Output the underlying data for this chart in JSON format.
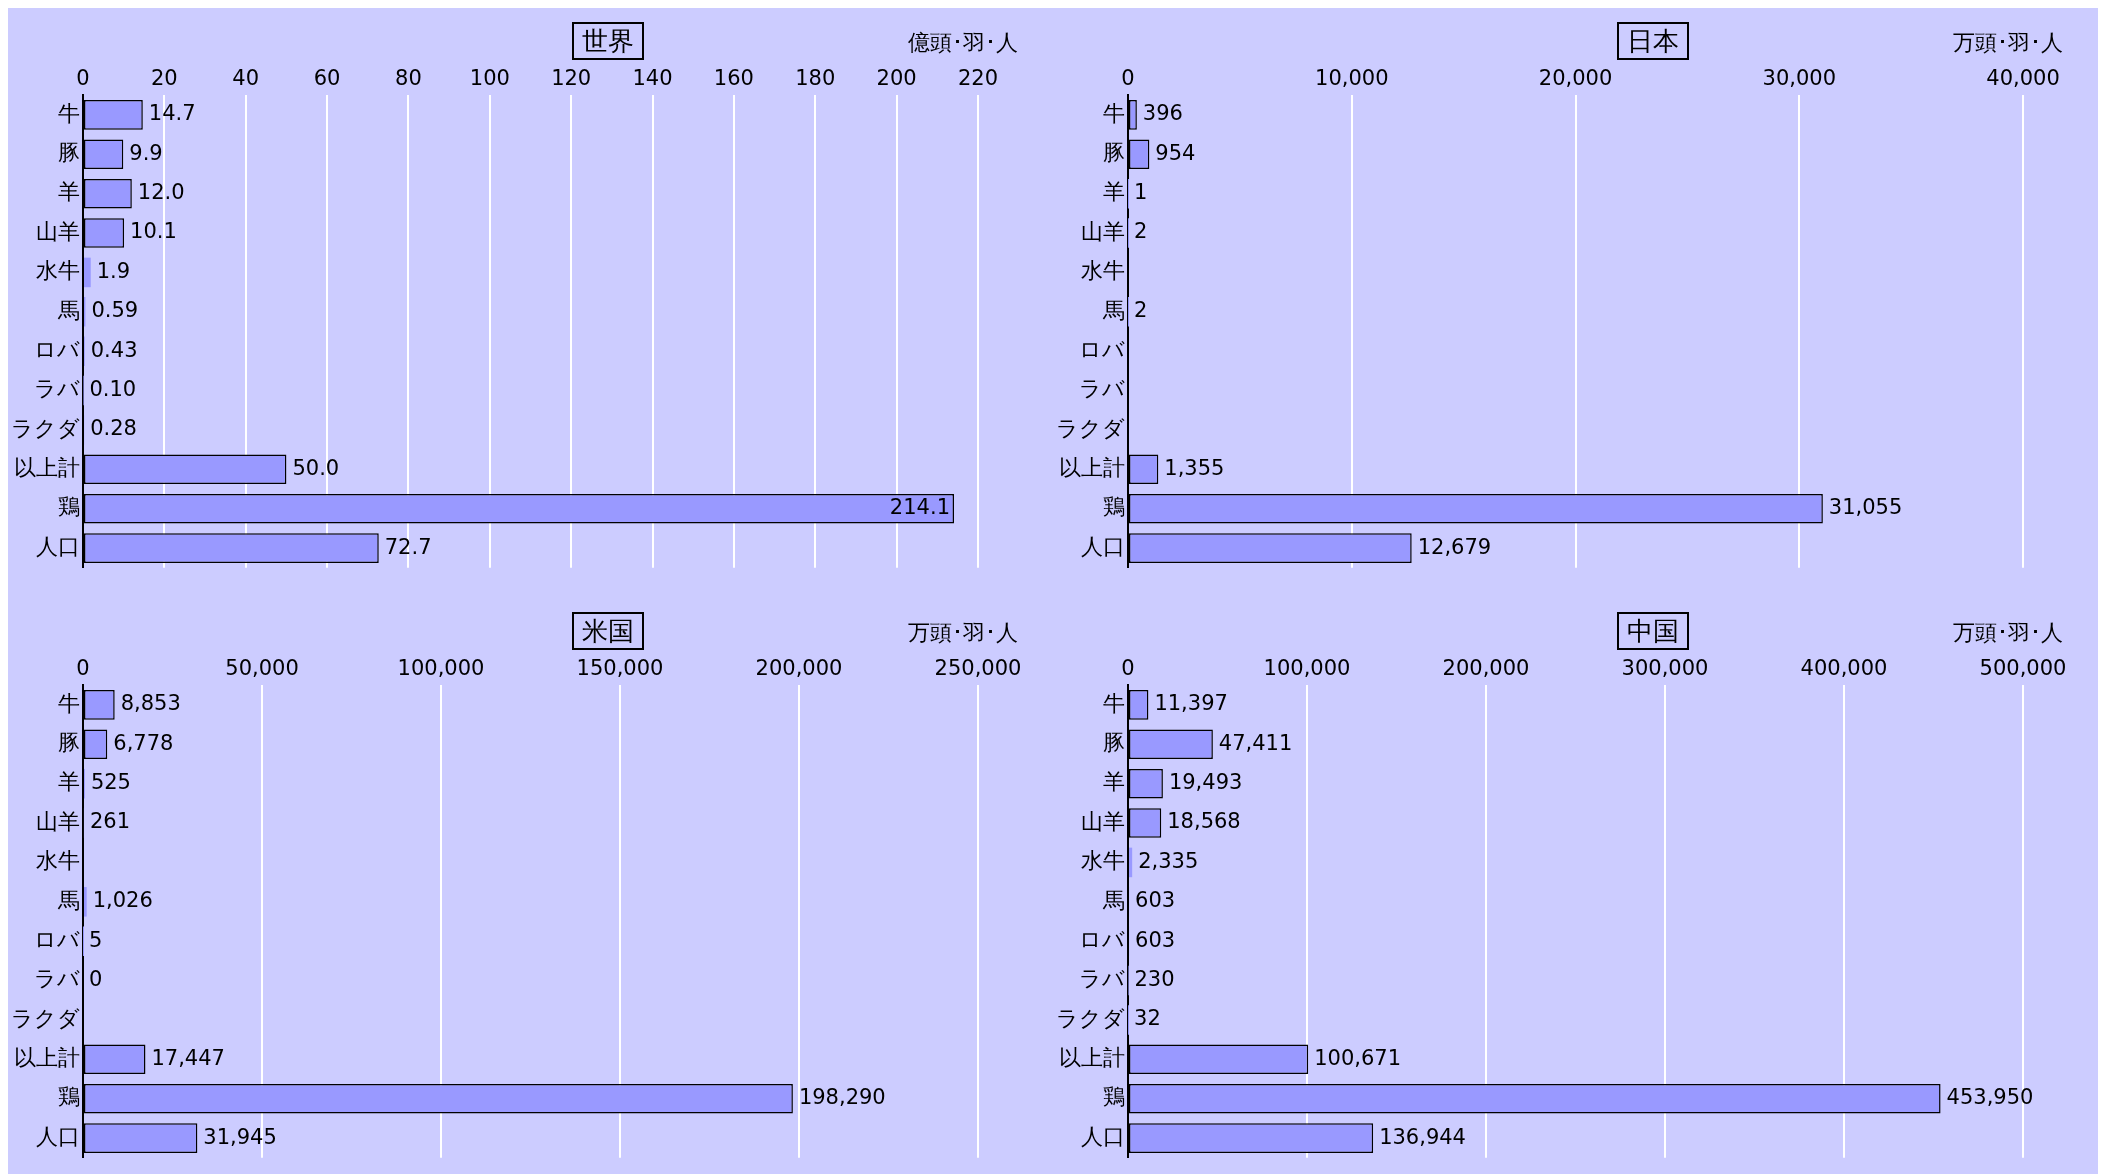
{
  "chart_data": [
    {
      "type": "bar",
      "orientation": "horizontal",
      "title": "世界",
      "xlabel": "億頭･羽･人",
      "categories": [
        "牛",
        "豚",
        "羊",
        "山羊",
        "水牛",
        "馬",
        "ロバ",
        "ラバ",
        "ラクダ",
        "以上計",
        "鶏",
        "人口"
      ],
      "values": [
        14.7,
        9.9,
        12.0,
        10.1,
        1.9,
        0.59,
        0.43,
        0.1,
        0.28,
        50.0,
        214.1,
        72.7
      ],
      "value_labels": [
        "14.7",
        "9.9",
        "12.0",
        "10.1",
        "1.9",
        "0.59",
        "0.43",
        "0.10",
        "0.28",
        "50.0",
        "214.1",
        "72.7"
      ],
      "color": "#9999ff",
      "xlim": [
        0,
        220
      ],
      "xticks": [
        0,
        20,
        40,
        60,
        80,
        100,
        120,
        140,
        160,
        180,
        200,
        220
      ],
      "grid": "x"
    },
    {
      "type": "bar",
      "orientation": "horizontal",
      "title": "日本",
      "xlabel": "万頭･羽･人",
      "categories": [
        "牛",
        "豚",
        "羊",
        "山羊",
        "水牛",
        "馬",
        "ロバ",
        "ラバ",
        "ラクダ",
        "以上計",
        "鶏",
        "人口"
      ],
      "values": [
        396,
        954,
        1,
        2,
        null,
        2,
        null,
        null,
        null,
        1355,
        31055,
        12679
      ],
      "value_labels": [
        "396",
        "954",
        "1",
        "2",
        null,
        "2",
        null,
        null,
        null,
        "1,355",
        "31,055",
        "12,679"
      ],
      "color": "#9999ff",
      "xlim": [
        0,
        40000
      ],
      "xticks": [
        {
          "value": 0,
          "label": "0"
        },
        {
          "value": 10000,
          "label": "10,000"
        },
        {
          "value": 20000,
          "label": "20,000"
        },
        {
          "value": 30000,
          "label": "30,000"
        },
        {
          "value": 40000,
          "label": "40,000"
        }
      ],
      "grid": "x"
    },
    {
      "type": "bar",
      "orientation": "horizontal",
      "title": "米国",
      "xlabel": "万頭･羽･人",
      "categories": [
        "牛",
        "豚",
        "羊",
        "山羊",
        "水牛",
        "馬",
        "ロバ",
        "ラバ",
        "ラクダ",
        "以上計",
        "鶏",
        "人口"
      ],
      "values": [
        8853,
        6778,
        525,
        261,
        null,
        1026,
        5,
        0,
        null,
        17447,
        198290,
        31945
      ],
      "value_labels": [
        "8,853",
        "6,778",
        "525",
        "261",
        null,
        "1,026",
        "5",
        "0",
        null,
        "17,447",
        "198,290",
        "31,945"
      ],
      "color": "#9999ff",
      "xlim": [
        0,
        250000
      ],
      "xticks": [
        {
          "value": 0,
          "label": "0"
        },
        {
          "value": 50000,
          "label": "50,000"
        },
        {
          "value": 100000,
          "label": "100,000"
        },
        {
          "value": 150000,
          "label": "150,000"
        },
        {
          "value": 200000,
          "label": "200,000"
        },
        {
          "value": 250000,
          "label": "250,000"
        }
      ],
      "grid": "x"
    },
    {
      "type": "bar",
      "orientation": "horizontal",
      "title": "中国",
      "xlabel": "万頭･羽･人",
      "categories": [
        "牛",
        "豚",
        "羊",
        "山羊",
        "水牛",
        "馬",
        "ロバ",
        "ラバ",
        "ラクダ",
        "以上計",
        "鶏",
        "人口"
      ],
      "values": [
        11397,
        47411,
        19493,
        18568,
        2335,
        603,
        603,
        230,
        32,
        100671,
        453950,
        136944
      ],
      "value_labels": [
        "11,397",
        "47,411",
        "19,493",
        "18,568",
        "2,335",
        "603",
        "603",
        "230",
        "32",
        "100,671",
        "453,950",
        "136,944"
      ],
      "color": "#9999ff",
      "xlim": [
        0,
        500000
      ],
      "xticks": [
        {
          "value": 0,
          "label": "0"
        },
        {
          "value": 100000,
          "label": "100,000"
        },
        {
          "value": 200000,
          "label": "200,000"
        },
        {
          "value": 300000,
          "label": "300,000"
        },
        {
          "value": 400000,
          "label": "400,000"
        },
        {
          "value": 500000,
          "label": "500,000"
        }
      ],
      "grid": "x"
    }
  ]
}
